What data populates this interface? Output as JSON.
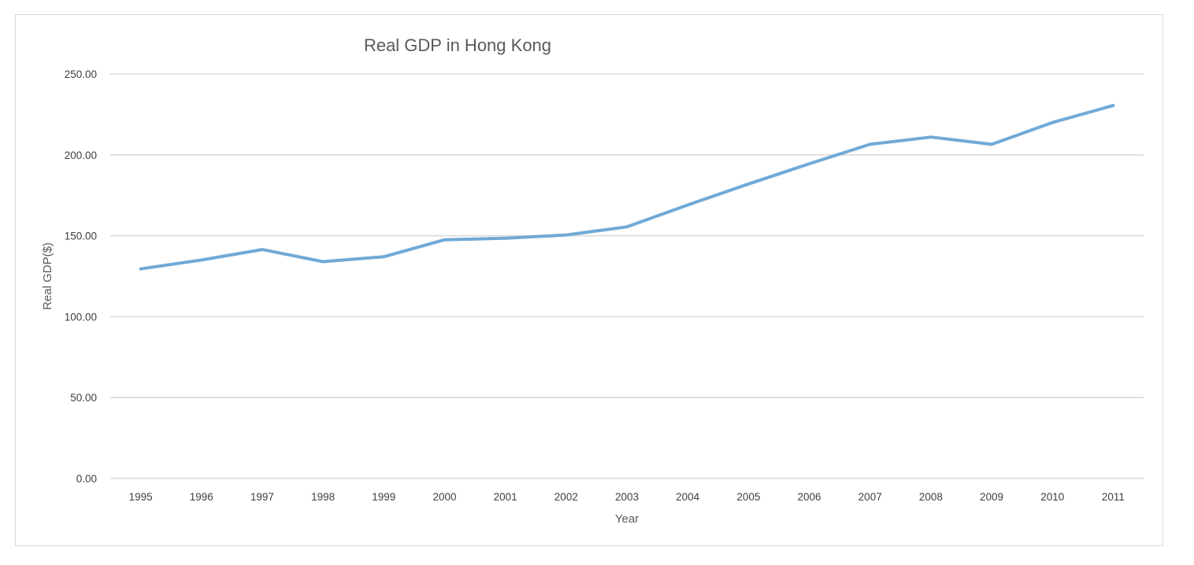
{
  "chart_data": {
    "type": "line",
    "title": "Real GDP in Hong Kong",
    "xlabel": "Year",
    "ylabel": "Real GDP($)",
    "categories": [
      "1995",
      "1996",
      "1997",
      "1998",
      "1999",
      "2000",
      "2001",
      "2002",
      "2003",
      "2004",
      "2005",
      "2006",
      "2007",
      "2008",
      "2009",
      "2010",
      "2011"
    ],
    "series": [
      {
        "values": [
          129.5,
          135.0,
          141.5,
          134.0,
          137.0,
          147.5,
          148.5,
          150.5,
          155.5,
          169.0,
          182.0,
          194.5,
          206.5,
          211.0,
          206.5,
          220.0,
          230.5
        ],
        "color": "#70a9d6"
      }
    ],
    "ylim": [
      0,
      250
    ],
    "yticks": [
      "0.00",
      "50.00",
      "100.00",
      "150.00",
      "200.00",
      "250.00"
    ],
    "grid": true,
    "legend": "none"
  }
}
